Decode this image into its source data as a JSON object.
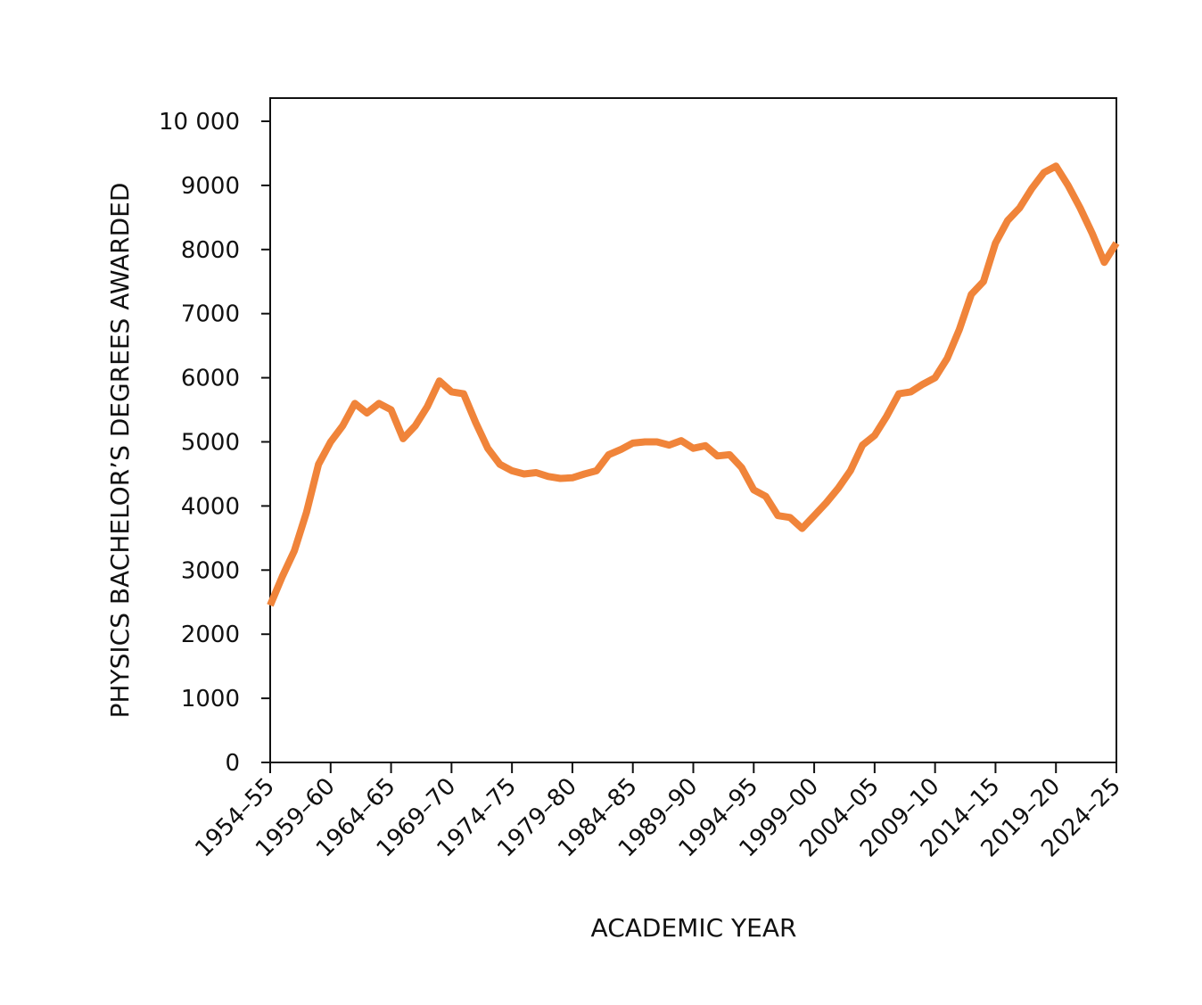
{
  "chart_data": {
    "type": "line",
    "title": "",
    "xlabel": "ACADEMIC YEAR",
    "ylabel": "PHYSICS BACHELOR’S DEGREES AWARDED",
    "ylim": [
      0,
      10000
    ],
    "xlim": [
      1954,
      2024
    ],
    "yticks": [
      0,
      1000,
      2000,
      3000,
      4000,
      5000,
      6000,
      7000,
      8000,
      9000,
      10000
    ],
    "ytick_labels": [
      "0",
      "1000",
      "2000",
      "3000",
      "4000",
      "5000",
      "6000",
      "7000",
      "8000",
      "9000",
      "10 000"
    ],
    "xticks": [
      1954,
      1959,
      1964,
      1969,
      1974,
      1979,
      1984,
      1989,
      1994,
      1999,
      2004,
      2009,
      2014,
      2019,
      2024
    ],
    "xtick_labels": [
      "1954–55",
      "1959–60",
      "1964–65",
      "1969–70",
      "1974–75",
      "1979–80",
      "1984–85",
      "1989–90",
      "1994–95",
      "1999–00",
      "2004–05",
      "2009–10",
      "2014–15",
      "2019–20",
      "2024–25"
    ],
    "grid": false,
    "line_color": "#F0843A",
    "series": [
      {
        "x": [
          1954,
          1955,
          1956,
          1957,
          1958,
          1959,
          1960,
          1961,
          1962,
          1963,
          1964,
          1965,
          1966,
          1967,
          1968,
          1969,
          1970,
          1971,
          1972,
          1973,
          1974,
          1975,
          1976,
          1977,
          1978,
          1979,
          1980,
          1981,
          1982,
          1983,
          1984,
          1985,
          1986,
          1987,
          1988,
          1989,
          1990,
          1991,
          1992,
          1993,
          1994,
          1995,
          1996,
          1997,
          1998,
          1999,
          2000,
          2001,
          2002,
          2003,
          2004,
          2005,
          2006,
          2007,
          2008,
          2009,
          2010,
          2011,
          2012,
          2013,
          2014,
          2015,
          2016,
          2017,
          2018,
          2019,
          2020,
          2021,
          2022,
          2023,
          2024
        ],
        "values": [
          2450,
          2900,
          3300,
          3900,
          4650,
          5000,
          5250,
          5600,
          5450,
          5600,
          5500,
          5050,
          5250,
          5550,
          5950,
          5780,
          5750,
          5300,
          4900,
          4650,
          4550,
          4500,
          4520,
          4460,
          4430,
          4440,
          4500,
          4550,
          4800,
          4880,
          4980,
          5000,
          5000,
          4950,
          5020,
          4900,
          4940,
          4780,
          4800,
          4600,
          4250,
          4150,
          3850,
          3820,
          3650,
          3850,
          4050,
          4280,
          4550,
          4950,
          5100,
          5400,
          5750,
          5780,
          5900,
          6000,
          6300,
          6750,
          7300,
          7500,
          8100,
          8450,
          8650,
          8950,
          9200,
          9300,
          9000,
          8650,
          8250,
          7800,
          8100
        ]
      }
    ]
  }
}
